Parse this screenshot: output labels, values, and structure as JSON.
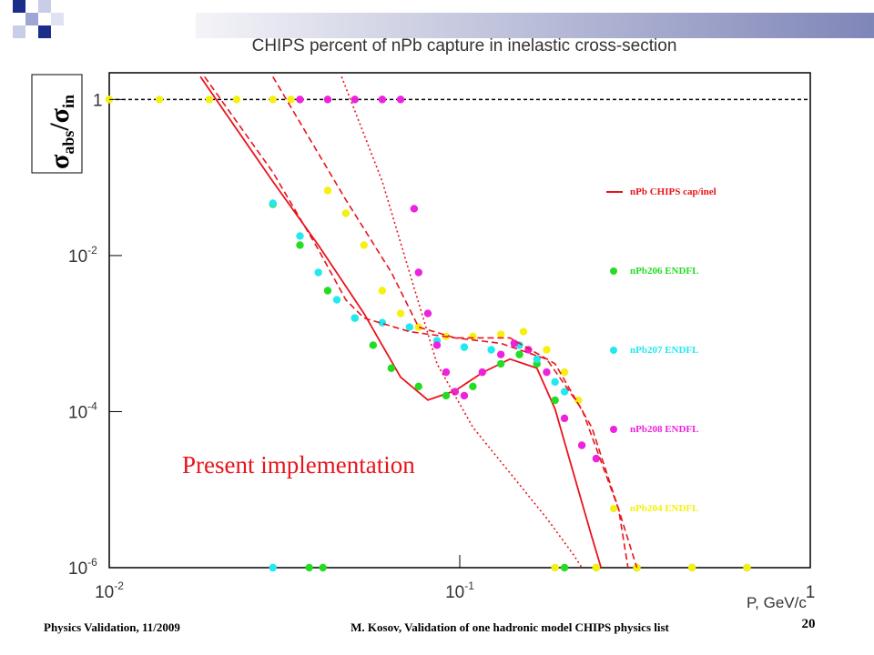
{
  "chart_data": {
    "type": "line",
    "title": "CHIPS percent of nPb capture in inelastic cross-section",
    "xlabel": "P, GeV/c",
    "ylabel": {
      "symbol": "σ",
      "sub1": "abs",
      "mid": "/σ",
      "sub2": "in"
    },
    "annotation": "Present implementation",
    "log_x": true,
    "log_y": true,
    "xlim": [
      0.01,
      1
    ],
    "ylim": [
      1e-06,
      2.2
    ],
    "xticks": [
      {
        "value": 0.01,
        "label": "10",
        "exponent": "-2"
      },
      {
        "value": 0.1,
        "label": "10",
        "exponent": "-1"
      },
      1
    ],
    "yticks": [
      {
        "value": 1e-06,
        "label": "10",
        "exponent": "-6"
      },
      {
        "value": 0.0001,
        "label": "10",
        "exponent": "-4"
      },
      {
        "value": 0.01,
        "label": "10",
        "exponent": "-2"
      },
      1
    ],
    "reference_line": 1,
    "series": [
      {
        "name": "nPb CHIPS cap/inel",
        "color": "#e8141c",
        "style": "solid",
        "x": [
          0.0182,
          0.0293,
          0.0395,
          0.0533,
          0.0678,
          0.0811,
          0.097,
          0.116,
          0.139,
          0.166,
          0.187,
          0.211,
          0.238,
          0.253
        ],
        "values": [
          1.96,
          0.089,
          0.0136,
          0.00181,
          0.000276,
          0.000141,
          0.000185,
          0.000316,
          0.000472,
          0.000361,
          0.000108,
          1.64e-05,
          2.5e-06,
          1e-06
        ]
      },
      {
        "name": "nPb206 ENDFL",
        "color": "#22dd22",
        "style": "markers",
        "x": [
          0.0293,
          0.035,
          0.042,
          0.0502,
          0.0566,
          0.0638,
          0.0763,
          0.0914,
          0.109,
          0.131,
          0.148,
          0.166,
          0.187,
          0.0372,
          0.0407,
          0.199,
          0.245,
          0.32,
          0.46,
          0.66
        ],
        "values": [
          0.0455,
          0.0136,
          0.00355,
          0.00158,
          0.00071,
          0.00036,
          0.00021,
          0.00016,
          0.00021,
          0.00041,
          0.00054,
          0.00041,
          0.00014,
          1e-06,
          1e-06,
          1e-06,
          1e-06,
          1e-06,
          1e-06,
          1e-06
        ]
      },
      {
        "name": "nPb207 ENDFL",
        "color": "#22e8f0",
        "style": "markers",
        "x": [
          0.0293,
          0.035,
          0.0395,
          0.0446,
          0.0502,
          0.0601,
          0.0719,
          0.0861,
          0.103,
          0.123,
          0.148,
          0.166,
          0.187,
          0.199,
          0.0293
        ],
        "values": [
          0.0468,
          0.0178,
          0.00607,
          0.00271,
          0.00158,
          0.00138,
          0.00121,
          0.00081,
          0.00067,
          0.00062,
          0.00071,
          0.00047,
          0.00024,
          0.00018,
          1e-06
        ]
      },
      {
        "name": "nPb208 ENDFL",
        "color": "#ee22dd",
        "style": "markers",
        "x": [
          0.035,
          0.042,
          0.0502,
          0.0601,
          0.0678,
          0.0741,
          0.0763,
          0.0811,
          0.0861,
          0.0914,
          0.097,
          0.103,
          0.116,
          0.131,
          0.143,
          0.157,
          0.177,
          0.199,
          0.223,
          0.245
        ],
        "values": [
          1,
          1,
          1,
          1,
          1,
          0.0398,
          0.00607,
          0.00181,
          0.00071,
          0.00032,
          0.00018,
          0.00016,
          0.00032,
          0.00054,
          0.00075,
          0.00062,
          0.00032,
          8.2e-05,
          3.7e-05,
          2.5e-05
        ]
      },
      {
        "name": "nPb204 ENDFL",
        "color": "#f5f010",
        "style": "markers",
        "x": [
          0.01,
          0.0139,
          0.0193,
          0.0231,
          0.0293,
          0.033,
          0.042,
          0.0473,
          0.0533,
          0.0601,
          0.0678,
          0.0763,
          0.0914,
          0.109,
          0.131,
          0.152,
          0.177,
          0.199,
          0.218,
          0.187,
          0.245,
          0.32,
          0.46,
          0.66
        ],
        "values": [
          1,
          1,
          1,
          1,
          1,
          1,
          0.068,
          0.0348,
          0.0136,
          0.00355,
          0.00181,
          0.00121,
          0.00092,
          0.00092,
          0.00098,
          0.00106,
          0.00062,
          0.00032,
          0.00014,
          1e-06,
          1e-06,
          1e-06,
          1e-06,
          1e-06
        ]
      },
      {
        "color": "#e8141c",
        "style": "dashed",
        "x": [
          0.0187,
          0.0293,
          0.0395,
          0.0473,
          0.0533,
          0.0719,
          0.097,
          0.131,
          0.177,
          0.223,
          0.284,
          0.302
        ],
        "values": [
          1.96,
          0.117,
          0.0119,
          0.00271,
          0.00158,
          0.00106,
          0.00088,
          0.00075,
          0.00047,
          0.000108,
          5.6e-06,
          1e-06
        ]
      },
      {
        "color": "#e8141c",
        "style": "dashed",
        "x": [
          0.0293,
          0.0473,
          0.0638,
          0.0763,
          0.097,
          0.139,
          0.187,
          0.238,
          0.284,
          0.32
        ],
        "values": [
          1.96,
          0.052,
          0.00607,
          0.00121,
          0.00088,
          0.00088,
          0.00041,
          6.3e-05,
          5.6e-06,
          1e-06
        ]
      },
      {
        "color": "#e8141c",
        "style": "dotted",
        "x": [
          0.046,
          0.0601,
          0.0719,
          0.0861,
          0.109,
          0.139,
          0.177,
          0.211,
          0.223
        ],
        "values": [
          1.96,
          0.089,
          0.00607,
          0.00041,
          6.3e-05,
          1.64e-05,
          4.3e-06,
          1.47e-06,
          1e-06
        ]
      }
    ]
  },
  "footer": {
    "left": "Physics Validation, 11/2009",
    "center": "M. Kosov,  Validation of one hadronic model CHIPS physics list",
    "page": "20"
  }
}
